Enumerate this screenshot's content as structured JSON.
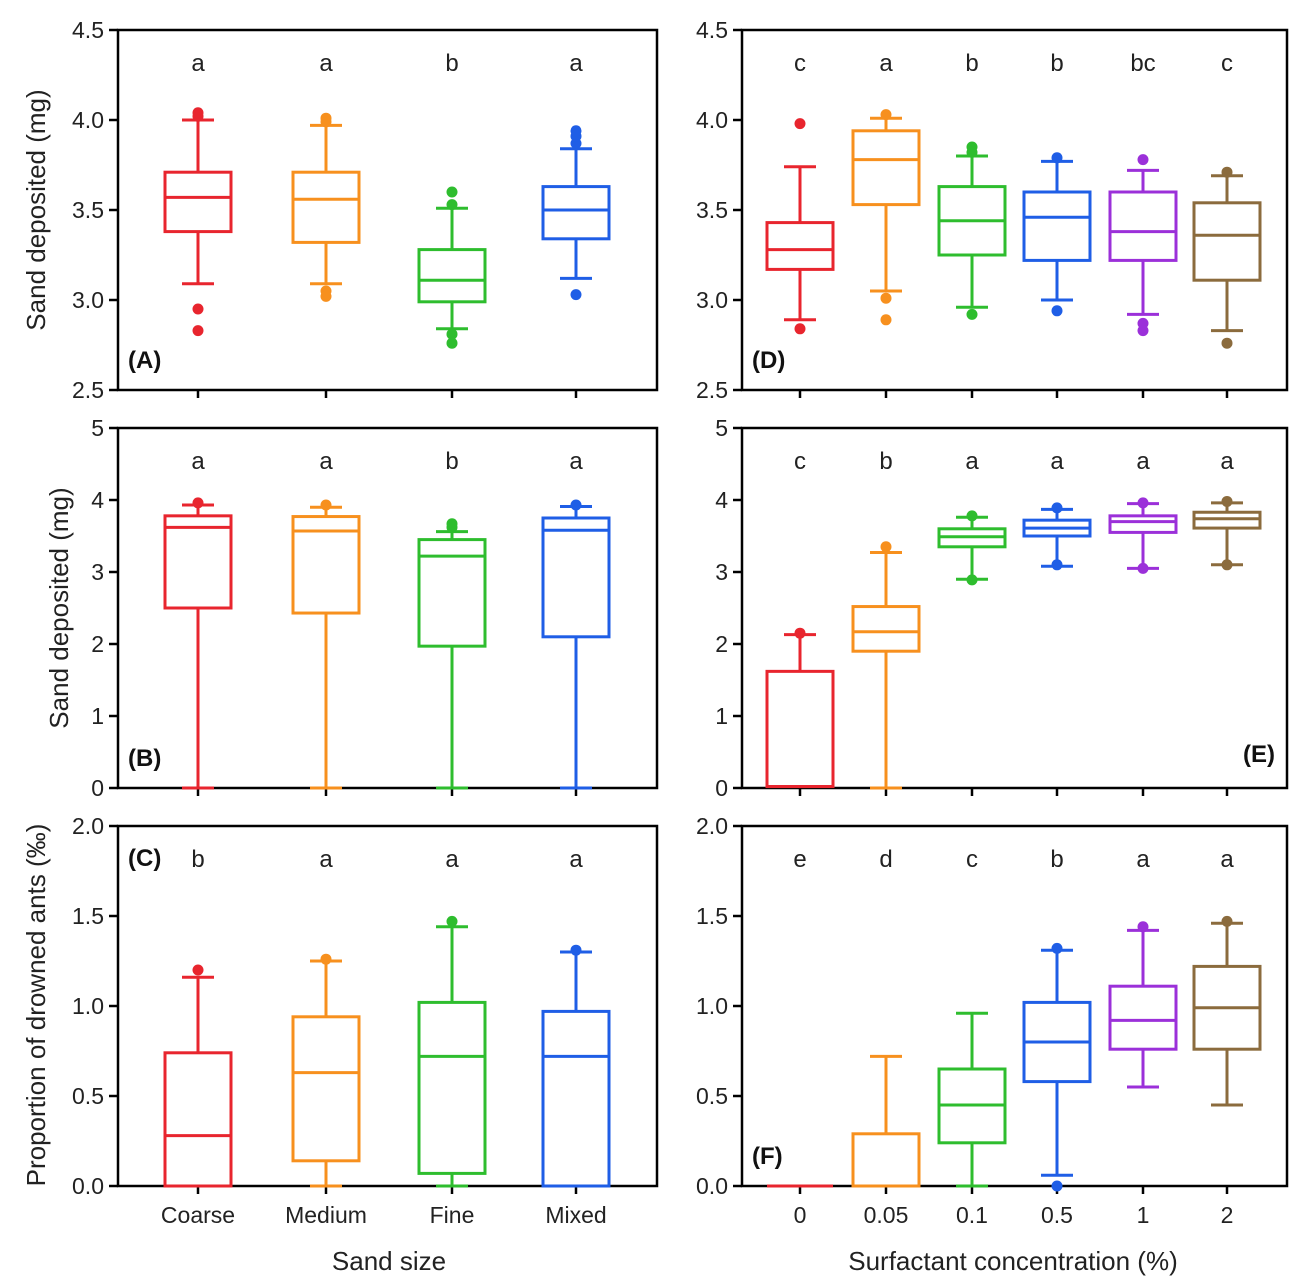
{
  "colors": {
    "sand": [
      "#e8252e",
      "#f7901e",
      "#2ebd2e",
      "#1f5ee6"
    ],
    "conc": [
      "#e8252e",
      "#f7901e",
      "#2ebd2e",
      "#1f5ee6",
      "#9b30d9",
      "#8b6b3d"
    ],
    "frame": "#000000"
  },
  "axis_titles": {
    "y_sand_deposited": "Sand deposited (mg)",
    "y_drowned": "Proportion of drowned ants (‰)",
    "x_sand_size": "Sand size",
    "x_surfactant": "Surfactant concentration (%)"
  },
  "chart_data": [
    {
      "id": "A",
      "type": "box",
      "panel_label": "(A)",
      "label_pos": "bottom-left",
      "ylabel": "Sand deposited (mg)",
      "xlabel": "",
      "ylim": [
        2.5,
        4.5
      ],
      "yticks": [
        "2.5",
        "3.0",
        "3.5",
        "4.0",
        "4.5"
      ],
      "categories": [
        "Coarse",
        "Medium",
        "Fine",
        "Mixed"
      ],
      "show_xticklabels": false,
      "letters": [
        "a",
        "a",
        "b",
        "a"
      ],
      "boxes": [
        {
          "whisker_low": 3.09,
          "q1": 3.38,
          "median": 3.57,
          "q3": 3.71,
          "whisker_high": 4.0,
          "outliers": [
            4.02,
            4.04,
            2.95,
            2.83
          ]
        },
        {
          "whisker_low": 3.09,
          "q1": 3.32,
          "median": 3.56,
          "q3": 3.71,
          "whisker_high": 3.97,
          "outliers": [
            3.99,
            4.01,
            3.05,
            3.02
          ]
        },
        {
          "whisker_low": 2.84,
          "q1": 2.99,
          "median": 3.11,
          "q3": 3.28,
          "whisker_high": 3.51,
          "outliers": [
            3.53,
            3.6,
            2.81,
            2.76
          ]
        },
        {
          "whisker_low": 3.12,
          "q1": 3.34,
          "median": 3.5,
          "q3": 3.63,
          "whisker_high": 3.84,
          "outliers": [
            3.87,
            3.91,
            3.94,
            3.03
          ]
        }
      ]
    },
    {
      "id": "B",
      "type": "box",
      "panel_label": "(B)",
      "label_pos": "bottom-left",
      "ylabel": "Sand deposited (mg)",
      "xlabel": "",
      "ylim": [
        0,
        5
      ],
      "yticks": [
        "0",
        "1",
        "2",
        "3",
        "4",
        "5"
      ],
      "categories": [
        "Coarse",
        "Medium",
        "Fine",
        "Mixed"
      ],
      "show_xticklabels": false,
      "letters": [
        "a",
        "a",
        "b",
        "a"
      ],
      "boxes": [
        {
          "whisker_low": 0.0,
          "q1": 2.5,
          "median": 3.62,
          "q3": 3.78,
          "whisker_high": 3.93,
          "outliers": [
            3.96
          ]
        },
        {
          "whisker_low": 0.0,
          "q1": 2.43,
          "median": 3.57,
          "q3": 3.77,
          "whisker_high": 3.9,
          "outliers": [
            3.93
          ]
        },
        {
          "whisker_low": 0.0,
          "q1": 1.97,
          "median": 3.22,
          "q3": 3.45,
          "whisker_high": 3.56,
          "outliers": [
            3.62,
            3.67
          ]
        },
        {
          "whisker_low": 0.0,
          "q1": 2.1,
          "median": 3.58,
          "q3": 3.75,
          "whisker_high": 3.91,
          "outliers": [
            3.93
          ]
        }
      ]
    },
    {
      "id": "C",
      "type": "box",
      "panel_label": "(C)",
      "label_pos": "top-left",
      "ylabel": "Proportion of drowned ants (‰)",
      "xlabel": "Sand size",
      "ylim": [
        0,
        2.0
      ],
      "yticks": [
        "0.0",
        "0.5",
        "1.0",
        "1.5",
        "2.0"
      ],
      "categories": [
        "Coarse",
        "Medium",
        "Fine",
        "Mixed"
      ],
      "show_xticklabels": true,
      "letters": [
        "b",
        "a",
        "a",
        "a"
      ],
      "boxes": [
        {
          "whisker_low": 0.0,
          "q1": 0.0,
          "median": 0.28,
          "q3": 0.74,
          "whisker_high": 1.16,
          "outliers": [
            1.2
          ]
        },
        {
          "whisker_low": 0.0,
          "q1": 0.14,
          "median": 0.63,
          "q3": 0.94,
          "whisker_high": 1.25,
          "outliers": [
            1.26
          ]
        },
        {
          "whisker_low": 0.0,
          "q1": 0.07,
          "median": 0.72,
          "q3": 1.02,
          "whisker_high": 1.44,
          "outliers": [
            1.47
          ]
        },
        {
          "whisker_low": 0.0,
          "q1": 0.0,
          "median": 0.72,
          "q3": 0.97,
          "whisker_high": 1.3,
          "outliers": [
            1.31
          ]
        }
      ]
    },
    {
      "id": "D",
      "type": "box",
      "panel_label": "(D)",
      "label_pos": "bottom-left",
      "ylabel": "",
      "xlabel": "",
      "ylim": [
        2.5,
        4.5
      ],
      "yticks": [
        "2.5",
        "3.0",
        "3.5",
        "4.0",
        "4.5"
      ],
      "categories": [
        "0",
        "0.05",
        "0.1",
        "0.5",
        "1",
        "2"
      ],
      "show_xticklabels": false,
      "letters": [
        "c",
        "a",
        "b",
        "b",
        "bc",
        "c"
      ],
      "boxes": [
        {
          "whisker_low": 2.89,
          "q1": 3.17,
          "median": 3.28,
          "q3": 3.43,
          "whisker_high": 3.74,
          "outliers": [
            3.98,
            2.84
          ]
        },
        {
          "whisker_low": 3.05,
          "q1": 3.53,
          "median": 3.78,
          "q3": 3.94,
          "whisker_high": 4.01,
          "outliers": [
            4.03,
            3.01,
            2.89
          ]
        },
        {
          "whisker_low": 2.96,
          "q1": 3.25,
          "median": 3.44,
          "q3": 3.63,
          "whisker_high": 3.8,
          "outliers": [
            3.82,
            3.85,
            2.92
          ]
        },
        {
          "whisker_low": 3.0,
          "q1": 3.22,
          "median": 3.46,
          "q3": 3.6,
          "whisker_high": 3.77,
          "outliers": [
            3.79,
            2.94
          ]
        },
        {
          "whisker_low": 2.92,
          "q1": 3.22,
          "median": 3.38,
          "q3": 3.6,
          "whisker_high": 3.72,
          "outliers": [
            3.78,
            2.87,
            2.83
          ]
        },
        {
          "whisker_low": 2.83,
          "q1": 3.11,
          "median": 3.36,
          "q3": 3.54,
          "whisker_high": 3.69,
          "outliers": [
            3.71,
            2.76
          ]
        }
      ]
    },
    {
      "id": "E",
      "type": "box",
      "panel_label": "(E)",
      "label_pos": "bottom-right",
      "ylabel": "",
      "xlabel": "",
      "ylim": [
        0,
        5
      ],
      "yticks": [
        "0",
        "1",
        "2",
        "3",
        "4",
        "5"
      ],
      "categories": [
        "0",
        "0.05",
        "0.1",
        "0.5",
        "1",
        "2"
      ],
      "show_xticklabels": false,
      "letters": [
        "c",
        "b",
        "a",
        "a",
        "a",
        "a"
      ],
      "boxes": [
        {
          "whisker_low": 0.02,
          "q1": 0.02,
          "median": 0.02,
          "q3": 1.62,
          "whisker_high": 2.13,
          "outliers": [
            2.15
          ]
        },
        {
          "whisker_low": 0.0,
          "q1": 1.9,
          "median": 2.17,
          "q3": 2.52,
          "whisker_high": 3.27,
          "outliers": [
            3.35
          ]
        },
        {
          "whisker_low": 2.9,
          "q1": 3.35,
          "median": 3.49,
          "q3": 3.6,
          "whisker_high": 3.76,
          "outliers": [
            3.78,
            2.89
          ]
        },
        {
          "whisker_low": 3.08,
          "q1": 3.5,
          "median": 3.61,
          "q3": 3.72,
          "whisker_high": 3.87,
          "outliers": [
            3.89,
            3.1
          ]
        },
        {
          "whisker_low": 3.05,
          "q1": 3.55,
          "median": 3.7,
          "q3": 3.78,
          "whisker_high": 3.95,
          "outliers": [
            3.96,
            3.05
          ]
        },
        {
          "whisker_low": 3.1,
          "q1": 3.61,
          "median": 3.74,
          "q3": 3.83,
          "whisker_high": 3.96,
          "outliers": [
            3.98,
            3.1
          ]
        }
      ]
    },
    {
      "id": "F",
      "type": "box",
      "panel_label": "(F)",
      "label_pos": "bottom-left",
      "ylabel": "",
      "xlabel": "Surfactant concentration (%)",
      "ylim": [
        0,
        2.0
      ],
      "yticks": [
        "0.0",
        "0.5",
        "1.0",
        "1.5",
        "2.0"
      ],
      "categories": [
        "0",
        "0.05",
        "0.1",
        "0.5",
        "1",
        "2"
      ],
      "show_xticklabels": true,
      "letters": [
        "e",
        "d",
        "c",
        "b",
        "a",
        "a"
      ],
      "boxes": [
        {
          "whisker_low": 0.0,
          "q1": 0.0,
          "median": 0.0,
          "q3": 0.0,
          "whisker_high": 0.0,
          "outliers": []
        },
        {
          "whisker_low": 0.0,
          "q1": 0.0,
          "median": 0.0,
          "q3": 0.29,
          "whisker_high": 0.72,
          "outliers": []
        },
        {
          "whisker_low": 0.0,
          "q1": 0.24,
          "median": 0.45,
          "q3": 0.65,
          "whisker_high": 0.96,
          "outliers": []
        },
        {
          "whisker_low": 0.06,
          "q1": 0.58,
          "median": 0.8,
          "q3": 1.02,
          "whisker_high": 1.31,
          "outliers": [
            1.32,
            0.0
          ]
        },
        {
          "whisker_low": 0.55,
          "q1": 0.76,
          "median": 0.92,
          "q3": 1.11,
          "whisker_high": 1.42,
          "outliers": [
            1.44
          ]
        },
        {
          "whisker_low": 0.45,
          "q1": 0.76,
          "median": 0.99,
          "q3": 1.22,
          "whisker_high": 1.46,
          "outliers": [
            1.47
          ]
        }
      ]
    }
  ]
}
